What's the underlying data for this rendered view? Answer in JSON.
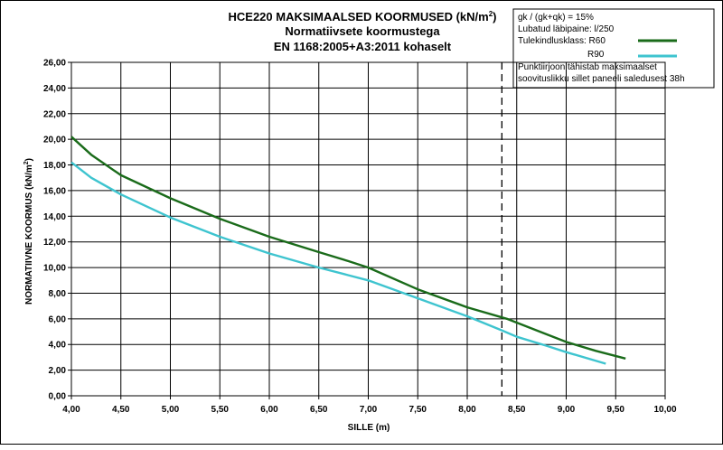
{
  "colors": {
    "r60": "#1a6b1a",
    "r90": "#3ec4cf",
    "grid": "#000000"
  },
  "title": {
    "line1": "HCE220 MAKSIMAALSED KOORMUSED (kN/m",
    "line1_sup": "2",
    "line1_end": ")",
    "line2": "Normatiivsete koormustega",
    "line3": "EN 1168:2005+A3:2011 kohaselt"
  },
  "legend": {
    "line1": "gk / (gk+qk) = 15%",
    "line2": "Lubatud läbipaine: l/250",
    "line3": "Tulekindlusklass: R60",
    "line4": "R90",
    "line5": "Punktiirjoon tähistab maksimaalset",
    "line6": "soovituslikku sillet paneeli saledusest 38h"
  },
  "chart_data": {
    "type": "line",
    "title": "HCE220 MAKSIMAALSED KOORMUSED (kN/m2)",
    "subtitle": "Normatiivsete koormustega — EN 1168:2005+A3:2011 kohaselt",
    "xlabel": "SILLE (m)",
    "ylabel": "NORMATIIVNE KOORMUS (kN/m",
    "ylabel_sup": "2",
    "ylabel_end": ")",
    "xlim": [
      4.0,
      10.0
    ],
    "ylim": [
      0.0,
      26.0
    ],
    "x_ticks": [
      4.0,
      4.5,
      5.0,
      5.5,
      6.0,
      6.5,
      7.0,
      7.5,
      8.0,
      8.5,
      9.0,
      9.5,
      10.0
    ],
    "x_tick_labels": [
      "4,00",
      "4,50",
      "5,00",
      "5,50",
      "6,00",
      "6,50",
      "7,00",
      "7,50",
      "8,00",
      "8,50",
      "9,00",
      "9,50",
      "10,00"
    ],
    "y_ticks": [
      0,
      2,
      4,
      6,
      8,
      10,
      12,
      14,
      16,
      18,
      20,
      22,
      24,
      26
    ],
    "y_tick_labels": [
      "0,00",
      "2,00",
      "4,00",
      "6,00",
      "8,00",
      "10,00",
      "12,00",
      "14,00",
      "16,00",
      "18,00",
      "20,00",
      "22,00",
      "24,00",
      "26,00"
    ],
    "grid": true,
    "max_span_line": 8.35,
    "series": [
      {
        "name": "R60",
        "x": [
          4.0,
          4.2,
          4.5,
          5.0,
          5.5,
          6.0,
          6.5,
          6.8,
          7.0,
          7.5,
          8.0,
          8.4,
          8.8,
          9.0,
          9.3,
          9.6
        ],
        "y": [
          20.2,
          18.8,
          17.2,
          15.4,
          13.8,
          12.4,
          11.2,
          10.5,
          10.0,
          8.3,
          6.9,
          6.0,
          4.8,
          4.2,
          3.5,
          2.9
        ]
      },
      {
        "name": "R90",
        "x": [
          4.0,
          4.2,
          4.5,
          5.0,
          5.5,
          6.0,
          6.5,
          6.8,
          7.0,
          7.5,
          8.0,
          8.35,
          8.5,
          8.8,
          9.0,
          9.4
        ],
        "y": [
          18.2,
          17.0,
          15.7,
          13.9,
          12.4,
          11.1,
          10.0,
          9.4,
          9.0,
          7.6,
          6.2,
          5.1,
          4.6,
          3.9,
          3.4,
          2.5
        ]
      }
    ]
  }
}
